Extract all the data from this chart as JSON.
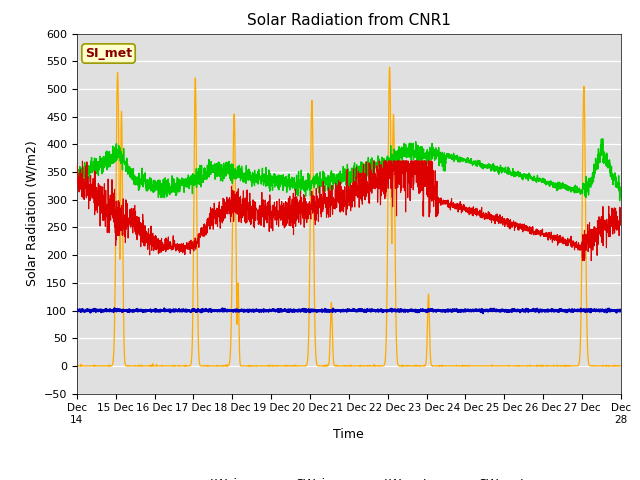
{
  "title": "Solar Radiation from CNR1",
  "xlabel": "Time",
  "ylabel": "Solar Radiation (W/m2)",
  "ylim": [
    -50,
    570
  ],
  "annotation": "SI_met",
  "colors": {
    "LW_in": "#dd0000",
    "SW_in": "#ffaa00",
    "LW_out": "#00cc00",
    "SW_out": "#0000bb"
  },
  "bg_color": "#e0e0e0",
  "n_days": 14,
  "pts_per_day": 200
}
